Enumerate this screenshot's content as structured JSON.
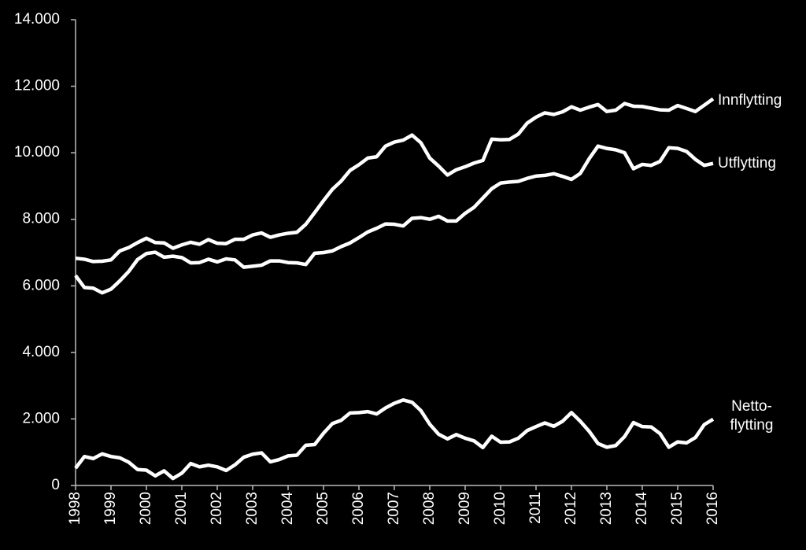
{
  "chart_data": {
    "type": "line",
    "categories": [
      "1998",
      null,
      null,
      null,
      "1999",
      null,
      null,
      null,
      "2000",
      null,
      null,
      null,
      "2001",
      null,
      null,
      null,
      "2002",
      null,
      null,
      null,
      "2003",
      null,
      null,
      null,
      "2004",
      null,
      null,
      null,
      "2005",
      null,
      null,
      null,
      "2006",
      null,
      null,
      null,
      "2007",
      null,
      null,
      null,
      "2008",
      null,
      null,
      null,
      "2009",
      null,
      null,
      null,
      "2010",
      null,
      null,
      null,
      "2011",
      null,
      null,
      null,
      "2012",
      null,
      null,
      null,
      "2013",
      null,
      null,
      null,
      "2014",
      null,
      null,
      null,
      "2015",
      null,
      null,
      null,
      "2016"
    ],
    "series": [
      {
        "name": "Innflytting",
        "color": "#ffffff",
        "values": [
          6830,
          6800,
          6730,
          6740,
          6780,
          7050,
          7150,
          7300,
          7430,
          7300,
          7290,
          7130,
          7230,
          7310,
          7250,
          7390,
          7280,
          7270,
          7400,
          7400,
          7530,
          7590,
          7460,
          7530,
          7580,
          7610,
          7850,
          8200,
          8560,
          8900,
          9150,
          9470,
          9640,
          9840,
          9880,
          10200,
          10320,
          10380,
          10530,
          10300,
          9840,
          9600,
          9330,
          9490,
          9580,
          9690,
          9770,
          10410,
          10390,
          10400,
          10560,
          10890,
          11070,
          11200,
          11150,
          11230,
          11380,
          11280,
          11370,
          11450,
          11240,
          11280,
          11480,
          11400,
          11390,
          11340,
          11290,
          11280,
          11420,
          11330,
          11240,
          11430,
          11620
        ]
      },
      {
        "name": "Utflytting",
        "color": "#ffffff",
        "values": [
          6310,
          5950,
          5930,
          5790,
          5900,
          6150,
          6430,
          6790,
          6970,
          7010,
          6860,
          6890,
          6850,
          6690,
          6700,
          6800,
          6720,
          6810,
          6780,
          6560,
          6590,
          6620,
          6750,
          6750,
          6700,
          6690,
          6640,
          6980,
          7000,
          7050,
          7180,
          7290,
          7450,
          7620,
          7730,
          7860,
          7850,
          7800,
          8030,
          8050,
          8000,
          8090,
          7950,
          7950,
          8180,
          8360,
          8640,
          8920,
          9090,
          9120,
          9140,
          9230,
          9300,
          9320,
          9370,
          9290,
          9200,
          9380,
          9820,
          10200,
          10130,
          10090,
          10000,
          9520,
          9650,
          9620,
          9740,
          10150,
          10130,
          10040,
          9800,
          9620,
          9680
        ]
      },
      {
        "name": "Netto-\nflytting",
        "color": "#ffffff",
        "values": [
          520,
          870,
          810,
          950,
          870,
          830,
          700,
          480,
          460,
          290,
          440,
          210,
          370,
          660,
          560,
          610,
          560,
          450,
          620,
          850,
          940,
          980,
          710,
          780,
          890,
          910,
          1210,
          1230,
          1570,
          1860,
          1960,
          2180,
          2190,
          2220,
          2150,
          2330,
          2470,
          2570,
          2500,
          2250,
          1840,
          1540,
          1400,
          1530,
          1420,
          1340,
          1140,
          1480,
          1300,
          1310,
          1420,
          1650,
          1770,
          1880,
          1780,
          1930,
          2190,
          1930,
          1630,
          1260,
          1150,
          1200,
          1470,
          1890,
          1770,
          1760,
          1560,
          1150,
          1310,
          1280,
          1440,
          1830,
          1990
        ]
      }
    ],
    "ylim": [
      0,
      14000
    ],
    "yticks": [
      0,
      {
        "value": 2000,
        "label": "2.000"
      },
      {
        "value": 4000,
        "label": "4.000"
      },
      {
        "value": 6000,
        "label": "6.000"
      },
      {
        "value": 8000,
        "label": "8.000"
      },
      {
        "value": 10000,
        "label": "10.000"
      },
      {
        "value": 12000,
        "label": "12.000"
      },
      {
        "value": 14000,
        "label": "14.000"
      }
    ]
  }
}
